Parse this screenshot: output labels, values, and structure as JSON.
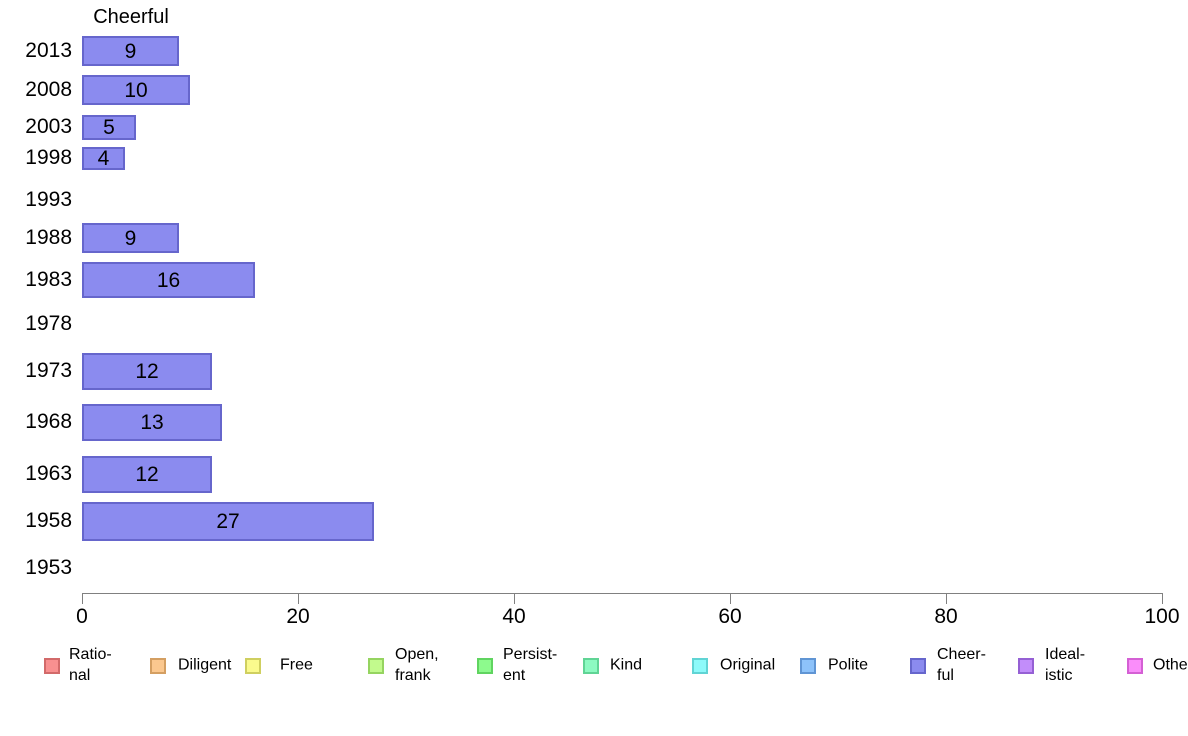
{
  "chart_data": {
    "type": "bar",
    "orientation": "horizontal",
    "title": "Cheerful",
    "categories": [
      "2013",
      "2008",
      "2003",
      "1998",
      "1993",
      "1988",
      "1983",
      "1978",
      "1973",
      "1968",
      "1963",
      "1958",
      "1953"
    ],
    "values": [
      9,
      10,
      5,
      4,
      null,
      9,
      16,
      null,
      12,
      13,
      12,
      27,
      null
    ],
    "xlabel": "",
    "ylabel": "",
    "xlim": [
      0,
      100
    ],
    "xticks": [
      "0",
      "20",
      "40",
      "60",
      "80",
      "100"
    ],
    "grid": false,
    "bar_color": "#8b8bef",
    "bar_border_color": "#6666cc",
    "axis_color": "#808080",
    "legend_position": "bottom"
  },
  "legend": {
    "items": [
      {
        "label": "Rational",
        "lines": [
          "Ratio-",
          "nal"
        ],
        "fill": "#f89090",
        "border": "#d26a6a"
      },
      {
        "label": "Diligent",
        "lines": [
          "Diligent"
        ],
        "fill": "#fbc88f",
        "border": "#d49f62"
      },
      {
        "label": "Free",
        "lines": [
          "Free"
        ],
        "fill": "#fafa8d",
        "border": "#cfcf60"
      },
      {
        "label": "Open, frank",
        "lines": [
          "Open,",
          "frank"
        ],
        "fill": "#c2fa8d",
        "border": "#95d460"
      },
      {
        "label": "Persistent",
        "lines": [
          "Persist-",
          "ent"
        ],
        "fill": "#8dfa8d",
        "border": "#60d460"
      },
      {
        "label": "Kind",
        "lines": [
          "Kind"
        ],
        "fill": "#8dfac2",
        "border": "#60d495"
      },
      {
        "label": "Original",
        "lines": [
          "Original"
        ],
        "fill": "#8dfafa",
        "border": "#60d4d4"
      },
      {
        "label": "Polite",
        "lines": [
          "Polite"
        ],
        "fill": "#8dc2fa",
        "border": "#6095d4"
      },
      {
        "label": "Cheerful",
        "lines": [
          "Cheer-",
          "ful"
        ],
        "fill": "#8b8bef",
        "border": "#6666cc"
      },
      {
        "label": "Idealistic",
        "lines": [
          "Ideal-",
          "istic"
        ],
        "fill": "#c28dfa",
        "border": "#9560d4"
      },
      {
        "label": "Other",
        "lines": [
          "Other"
        ],
        "fill": "#fa8dfa",
        "border": "#d460d4"
      }
    ]
  }
}
